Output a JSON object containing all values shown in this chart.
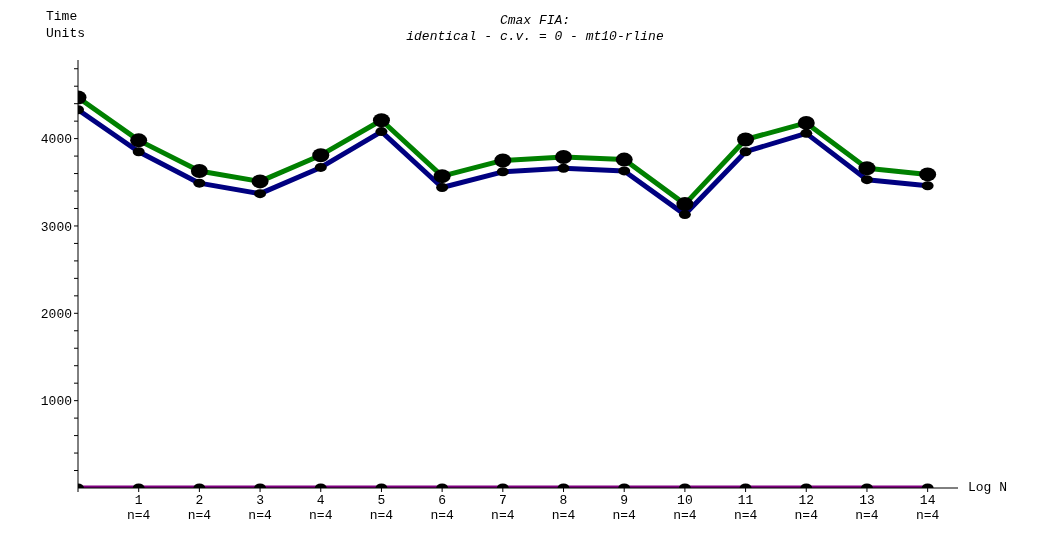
{
  "chart_data": {
    "type": "line",
    "title": "Cmax FIA:",
    "subtitle": "identical - c.v. = 0  - mt10-rline",
    "xlabel": "Log N",
    "ylabel": "Time\nUnits",
    "categories": [
      null,
      "1\nn=4",
      "2\nn=4",
      "3\nn=4",
      "4\nn=4",
      "5\nn=4",
      "6\nn=4",
      "7\nn=4",
      "8\nn=4",
      "9\nn=4",
      "10\nn=4",
      "11\nn=4",
      "12\nn=4",
      "13\nn=4",
      "14\nn=4"
    ],
    "series": [
      {
        "color": "#800080",
        "values": [
          0,
          0,
          0,
          0,
          0,
          0,
          0,
          0,
          0,
          0,
          0,
          0,
          0,
          0,
          0
        ]
      },
      {
        "color": "#000080",
        "values": [
          4330,
          3850,
          3490,
          3370,
          3670,
          4080,
          3440,
          3620,
          3660,
          3630,
          3130,
          3850,
          4060,
          3530,
          3460
        ]
      },
      {
        "color": "#008000",
        "values": [
          4470,
          3980,
          3630,
          3510,
          3810,
          4210,
          3570,
          3750,
          3790,
          3760,
          3250,
          3990,
          4180,
          3660,
          3590
        ]
      }
    ],
    "ylim": [
      0,
      4900
    ],
    "yticks": [
      {
        "value": 200,
        "label": null
      },
      {
        "value": 400,
        "label": null
      },
      {
        "value": 600,
        "label": null
      },
      {
        "value": 800,
        "label": null
      },
      1000,
      {
        "value": 1200,
        "label": null
      },
      {
        "value": 1400,
        "label": null
      },
      {
        "value": 1600,
        "label": null
      },
      {
        "value": 1800,
        "label": null
      },
      2000,
      {
        "value": 2200,
        "label": null
      },
      {
        "value": 2400,
        "label": null
      },
      {
        "value": 2600,
        "label": null
      },
      {
        "value": 2800,
        "label": null
      },
      3000,
      {
        "value": 3200,
        "label": null
      },
      {
        "value": 3400,
        "label": null
      },
      {
        "value": 3600,
        "label": null
      },
      {
        "value": 3800,
        "label": null
      },
      4000,
      {
        "value": 4200,
        "label": null
      },
      {
        "value": 4400,
        "label": null
      },
      {
        "value": 4600,
        "label": null
      },
      {
        "value": 4800,
        "label": null
      }
    ],
    "grid": false,
    "legend": false,
    "marker": "circle",
    "line_style": "solid"
  }
}
